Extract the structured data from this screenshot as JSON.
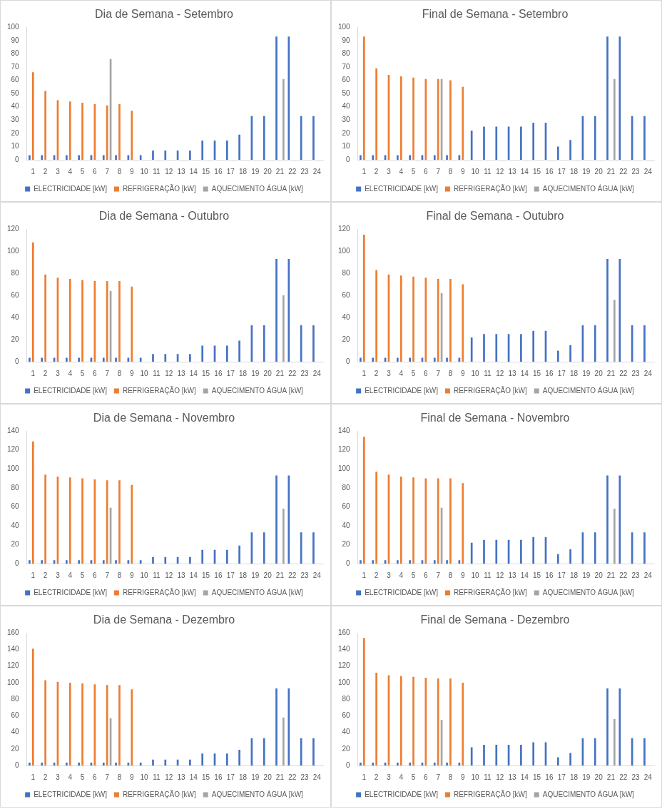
{
  "chart_data": [
    {
      "type": "bar",
      "title": "Dia de Semana - Setembro",
      "categories": [
        1,
        2,
        3,
        4,
        5,
        6,
        7,
        8,
        9,
        10,
        11,
        12,
        13,
        14,
        15,
        16,
        17,
        18,
        19,
        20,
        21,
        22,
        23,
        24
      ],
      "series": [
        {
          "name": "ELECTRICIDADE [kW]",
          "color": "#4472c4",
          "values": [
            3.5,
            3.5,
            3.5,
            3.5,
            3.5,
            3.5,
            3.5,
            3.5,
            3.5,
            3.5,
            7,
            7,
            7,
            7,
            14.5,
            14.5,
            14.5,
            19,
            33,
            33,
            93,
            93,
            33,
            33
          ]
        },
        {
          "name": "REFRIGERAÇÃO [kW]",
          "color": "#ed7d31",
          "values": [
            66,
            52,
            45,
            44,
            43,
            42,
            41,
            42,
            37,
            0,
            0,
            0,
            0,
            0,
            0,
            0,
            0,
            0,
            0,
            0,
            0,
            0,
            0,
            0
          ]
        },
        {
          "name": "AQUECIMENTO ÁGUA [kW]",
          "color": "#a5a5a5",
          "values": [
            0,
            0,
            0,
            0,
            0,
            0,
            76,
            0,
            0,
            0,
            0,
            0,
            0,
            0,
            0,
            0,
            0,
            0,
            0,
            0,
            61,
            0,
            0,
            0
          ]
        }
      ],
      "ylim": [
        0,
        100
      ],
      "yticks": [
        0,
        10,
        20,
        30,
        40,
        50,
        60,
        70,
        80,
        90,
        100
      ],
      "grid": false,
      "legend": "bottom"
    },
    {
      "type": "bar",
      "title": "Final de Semana - Setembro",
      "categories": [
        1,
        2,
        3,
        4,
        5,
        6,
        7,
        8,
        9,
        10,
        11,
        12,
        13,
        14,
        15,
        16,
        17,
        18,
        19,
        20,
        21,
        22,
        23,
        24
      ],
      "series": [
        {
          "name": "ELECTRICIDADE [kW]",
          "color": "#4472c4",
          "values": [
            3.5,
            3.5,
            3.5,
            3.5,
            3.5,
            3.5,
            3.5,
            3.5,
            3.5,
            22,
            25,
            25,
            25,
            25,
            28,
            28,
            10,
            15,
            33,
            33,
            93,
            93,
            33,
            33
          ]
        },
        {
          "name": "REFRIGERAÇÃO [kW]",
          "color": "#ed7d31",
          "values": [
            93,
            69,
            64,
            63,
            62,
            61,
            61,
            60,
            55,
            0,
            0,
            0,
            0,
            0,
            0,
            0,
            0,
            0,
            0,
            0,
            0,
            0,
            0,
            0
          ]
        },
        {
          "name": "AQUECIMENTO ÁGUA [kW]",
          "color": "#a5a5a5",
          "values": [
            0,
            0,
            0,
            0,
            0,
            0,
            61,
            0,
            0,
            0,
            0,
            0,
            0,
            0,
            0,
            0,
            0,
            0,
            0,
            0,
            61,
            0,
            0,
            0
          ]
        }
      ],
      "ylim": [
        0,
        100
      ],
      "yticks": [
        0,
        10,
        20,
        30,
        40,
        50,
        60,
        70,
        80,
        90,
        100
      ],
      "grid": false,
      "legend": "bottom"
    },
    {
      "type": "bar",
      "title": "Dia de Semana - Outubro",
      "categories": [
        1,
        2,
        3,
        4,
        5,
        6,
        7,
        8,
        9,
        10,
        11,
        12,
        13,
        14,
        15,
        16,
        17,
        18,
        19,
        20,
        21,
        22,
        23,
        24
      ],
      "series": [
        {
          "name": "ELECTRICIDADE [kW]",
          "color": "#4472c4",
          "values": [
            3.5,
            3.5,
            3.5,
            3.5,
            3.5,
            3.5,
            3.5,
            3.5,
            3.5,
            3.5,
            7,
            7,
            7,
            7,
            14.5,
            14.5,
            14.5,
            19,
            33,
            33,
            93,
            93,
            33,
            33
          ]
        },
        {
          "name": "REFRIGERAÇÃO [kW]",
          "color": "#ed7d31",
          "values": [
            108,
            79,
            76,
            75,
            74,
            73,
            73,
            73,
            68,
            0,
            0,
            0,
            0,
            0,
            0,
            0,
            0,
            0,
            0,
            0,
            0,
            0,
            0,
            0
          ]
        },
        {
          "name": "AQUECIMENTO ÁGUA [kW]",
          "color": "#a5a5a5",
          "values": [
            0,
            0,
            0,
            0,
            0,
            0,
            64,
            0,
            0,
            0,
            0,
            0,
            0,
            0,
            0,
            0,
            0,
            0,
            0,
            0,
            60,
            0,
            0,
            0
          ]
        }
      ],
      "ylim": [
        0,
        120
      ],
      "yticks": [
        0,
        20,
        40,
        60,
        80,
        100,
        120
      ],
      "grid": false,
      "legend": "bottom"
    },
    {
      "type": "bar",
      "title": "Final de Semana - Outubro",
      "categories": [
        1,
        2,
        3,
        4,
        5,
        6,
        7,
        8,
        9,
        10,
        11,
        12,
        13,
        14,
        15,
        16,
        17,
        18,
        19,
        20,
        21,
        22,
        23,
        24
      ],
      "series": [
        {
          "name": "ELECTRICIDADE [kW]",
          "color": "#4472c4",
          "values": [
            3.5,
            3.5,
            3.5,
            3.5,
            3.5,
            3.5,
            3.5,
            3.5,
            3.5,
            22,
            25,
            25,
            25,
            25,
            28,
            28,
            10,
            15,
            33,
            33,
            93,
            93,
            33,
            33
          ]
        },
        {
          "name": "REFRIGERAÇÃO [kW]",
          "color": "#ed7d31",
          "values": [
            115,
            83,
            79,
            78,
            77,
            76,
            75,
            75,
            70,
            0,
            0,
            0,
            0,
            0,
            0,
            0,
            0,
            0,
            0,
            0,
            0,
            0,
            0,
            0
          ]
        },
        {
          "name": "AQUECIMENTO ÁGUA [kW]",
          "color": "#a5a5a5",
          "values": [
            0,
            0,
            0,
            0,
            0,
            0,
            62,
            0,
            0,
            0,
            0,
            0,
            0,
            0,
            0,
            0,
            0,
            0,
            0,
            0,
            56,
            0,
            0,
            0
          ]
        }
      ],
      "ylim": [
        0,
        120
      ],
      "yticks": [
        0,
        20,
        40,
        60,
        80,
        100,
        120
      ],
      "grid": false,
      "legend": "bottom"
    },
    {
      "type": "bar",
      "title": "Dia de Semana - Novembro",
      "categories": [
        1,
        2,
        3,
        4,
        5,
        6,
        7,
        8,
        9,
        10,
        11,
        12,
        13,
        14,
        15,
        16,
        17,
        18,
        19,
        20,
        21,
        22,
        23,
        24
      ],
      "series": [
        {
          "name": "ELECTRICIDADE [kW]",
          "color": "#4472c4",
          "values": [
            3.5,
            3.5,
            3.5,
            3.5,
            3.5,
            3.5,
            3.5,
            3.5,
            3.5,
            3.5,
            7,
            7,
            7,
            7,
            14.5,
            14.5,
            14.5,
            19,
            33,
            33,
            93,
            93,
            33,
            33
          ]
        },
        {
          "name": "REFRIGERAÇÃO [kW]",
          "color": "#ed7d31",
          "values": [
            129,
            94,
            92,
            91,
            90,
            89,
            88,
            88,
            83,
            0,
            0,
            0,
            0,
            0,
            0,
            0,
            0,
            0,
            0,
            0,
            0,
            0,
            0,
            0
          ]
        },
        {
          "name": "AQUECIMENTO ÁGUA [kW]",
          "color": "#a5a5a5",
          "values": [
            0,
            0,
            0,
            0,
            0,
            0,
            59,
            0,
            0,
            0,
            0,
            0,
            0,
            0,
            0,
            0,
            0,
            0,
            0,
            0,
            58,
            0,
            0,
            0
          ]
        }
      ],
      "ylim": [
        0,
        140
      ],
      "yticks": [
        0,
        20,
        40,
        60,
        80,
        100,
        120,
        140
      ],
      "grid": false,
      "legend": "bottom"
    },
    {
      "type": "bar",
      "title": "Final de Semana - Novembro",
      "categories": [
        1,
        2,
        3,
        4,
        5,
        6,
        7,
        8,
        9,
        10,
        11,
        12,
        13,
        14,
        15,
        16,
        17,
        18,
        19,
        20,
        21,
        22,
        23,
        24
      ],
      "series": [
        {
          "name": "ELECTRICIDADE [kW]",
          "color": "#4472c4",
          "values": [
            3.5,
            3.5,
            3.5,
            3.5,
            3.5,
            3.5,
            3.5,
            3.5,
            3.5,
            22,
            25,
            25,
            25,
            25,
            28,
            28,
            10,
            15,
            33,
            33,
            93,
            93,
            33,
            33
          ]
        },
        {
          "name": "REFRIGERAÇÃO [kW]",
          "color": "#ed7d31",
          "values": [
            134,
            97,
            94,
            92,
            91,
            90,
            90,
            90,
            85,
            0,
            0,
            0,
            0,
            0,
            0,
            0,
            0,
            0,
            0,
            0,
            0,
            0,
            0,
            0
          ]
        },
        {
          "name": "AQUECIMENTO ÁGUA [kW]",
          "color": "#a5a5a5",
          "values": [
            0,
            0,
            0,
            0,
            0,
            0,
            59,
            0,
            0,
            0,
            0,
            0,
            0,
            0,
            0,
            0,
            0,
            0,
            0,
            0,
            58,
            0,
            0,
            0
          ]
        }
      ],
      "ylim": [
        0,
        140
      ],
      "yticks": [
        0,
        20,
        40,
        60,
        80,
        100,
        120,
        140
      ],
      "grid": false,
      "legend": "bottom"
    },
    {
      "type": "bar",
      "title": "Dia de Semana - Dezembro",
      "categories": [
        1,
        2,
        3,
        4,
        5,
        6,
        7,
        8,
        9,
        10,
        11,
        12,
        13,
        14,
        15,
        16,
        17,
        18,
        19,
        20,
        21,
        22,
        23,
        24
      ],
      "series": [
        {
          "name": "ELECTRICIDADE [kW]",
          "color": "#4472c4",
          "values": [
            3.5,
            3.5,
            3.5,
            3.5,
            3.5,
            3.5,
            3.5,
            3.5,
            3.5,
            3.5,
            7,
            7,
            7,
            7,
            14.5,
            14.5,
            14.5,
            19,
            33,
            33,
            93,
            93,
            33,
            33
          ]
        },
        {
          "name": "REFRIGERAÇÃO [kW]",
          "color": "#ed7d31",
          "values": [
            141,
            103,
            101,
            100,
            99,
            98,
            97,
            97,
            92,
            0,
            0,
            0,
            0,
            0,
            0,
            0,
            0,
            0,
            0,
            0,
            0,
            0,
            0,
            0
          ]
        },
        {
          "name": "AQUECIMENTO ÁGUA [kW]",
          "color": "#a5a5a5",
          "values": [
            0,
            0,
            0,
            0,
            0,
            0,
            57,
            0,
            0,
            0,
            0,
            0,
            0,
            0,
            0,
            0,
            0,
            0,
            0,
            0,
            58,
            0,
            0,
            0
          ]
        }
      ],
      "ylim": [
        0,
        160
      ],
      "yticks": [
        0,
        20,
        40,
        60,
        80,
        100,
        120,
        140,
        160
      ],
      "grid": false,
      "legend": "bottom"
    },
    {
      "type": "bar",
      "title": "Final de Semana - Dezembro",
      "categories": [
        1,
        2,
        3,
        4,
        5,
        6,
        7,
        8,
        9,
        10,
        11,
        12,
        13,
        14,
        15,
        16,
        17,
        18,
        19,
        20,
        21,
        22,
        23,
        24
      ],
      "series": [
        {
          "name": "ELECTRICIDADE [kW]",
          "color": "#4472c4",
          "values": [
            3.5,
            3.5,
            3.5,
            3.5,
            3.5,
            3.5,
            3.5,
            3.5,
            3.5,
            22,
            25,
            25,
            25,
            25,
            28,
            28,
            10,
            15,
            33,
            33,
            93,
            93,
            33,
            33
          ]
        },
        {
          "name": "REFRIGERAÇÃO [kW]",
          "color": "#ed7d31",
          "values": [
            154,
            112,
            109,
            108,
            107,
            106,
            105,
            105,
            100,
            0,
            0,
            0,
            0,
            0,
            0,
            0,
            0,
            0,
            0,
            0,
            0,
            0,
            0,
            0
          ]
        },
        {
          "name": "AQUECIMENTO ÁGUA [kW]",
          "color": "#a5a5a5",
          "values": [
            0,
            0,
            0,
            0,
            0,
            0,
            55,
            0,
            0,
            0,
            0,
            0,
            0,
            0,
            0,
            0,
            0,
            0,
            0,
            0,
            56,
            0,
            0,
            0
          ]
        }
      ],
      "ylim": [
        0,
        160
      ],
      "yticks": [
        0,
        20,
        40,
        60,
        80,
        100,
        120,
        140,
        160
      ],
      "grid": false,
      "legend": "bottom"
    }
  ]
}
